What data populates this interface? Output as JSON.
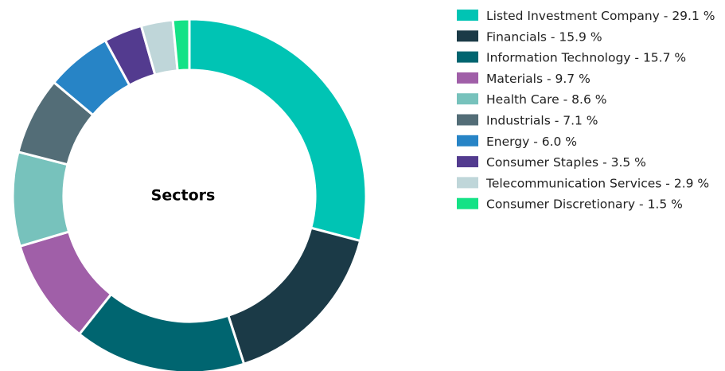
{
  "chart_data": {
    "type": "donut",
    "title": "Sectors",
    "categories": [
      "Listed Investment Company",
      "Financials",
      "Information Technology",
      "Materials",
      "Health Care",
      "Industrials",
      "Energy",
      "Consumer Staples",
      "Telecommunication Services",
      "Consumer Discretionary"
    ],
    "values": [
      29.1,
      15.9,
      15.7,
      9.7,
      8.6,
      7.1,
      6.0,
      3.5,
      2.9,
      1.5
    ],
    "value_labels": [
      "29.1 %",
      "15.9 %",
      "15.7 %",
      "9.7 %",
      "8.6 %",
      "7.1 %",
      "6.0 %",
      "3.5 %",
      "2.9 %",
      "1.5 %"
    ],
    "colors": [
      "#00c4b4",
      "#1b3a47",
      "#006570",
      "#a05fa8",
      "#77c2bc",
      "#536d77",
      "#2784c6",
      "#533b8f",
      "#bfd6d9",
      "#14e286"
    ],
    "legend": "right"
  }
}
